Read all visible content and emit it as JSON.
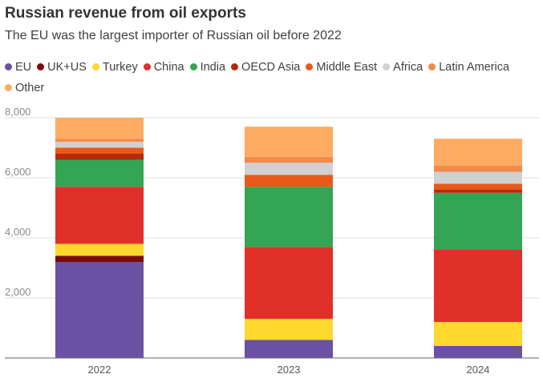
{
  "chart_data": {
    "type": "bar",
    "stacked": true,
    "title": "Russian revenue from oil exports",
    "subtitle": "The EU was the largest importer of Russian oil before 2022",
    "categories": [
      "2022",
      "2023",
      "2024"
    ],
    "y_ticks": [
      2000,
      4000,
      6000,
      8000
    ],
    "y_tick_labels": [
      "2,000",
      "4,000",
      "6,000",
      "8,000"
    ],
    "ylim": [
      0,
      8000
    ],
    "grid": true,
    "legend_position": "top",
    "series": [
      {
        "name": "EU",
        "color": "#6a51a3",
        "values": [
          3200,
          600,
          400
        ]
      },
      {
        "name": "UK+US",
        "color": "#7b0a0a",
        "values": [
          200,
          0,
          0
        ]
      },
      {
        "name": "Turkey",
        "color": "#fed72f",
        "values": [
          400,
          700,
          800
        ]
      },
      {
        "name": "China",
        "color": "#e03029",
        "values": [
          1900,
          2400,
          2400
        ]
      },
      {
        "name": "India",
        "color": "#33a554",
        "values": [
          900,
          2000,
          1900
        ]
      },
      {
        "name": "OECD Asia",
        "color": "#b32c0f",
        "values": [
          200,
          0,
          100
        ]
      },
      {
        "name": "Middle East",
        "color": "#e8591a",
        "values": [
          200,
          400,
          200
        ]
      },
      {
        "name": "Africa",
        "color": "#d0d0d0",
        "values": [
          200,
          400,
          400
        ]
      },
      {
        "name": "Latin America",
        "color": "#f28a4c",
        "values": [
          100,
          200,
          200
        ]
      },
      {
        "name": "Other",
        "color": "#fdab62",
        "values": [
          700,
          1000,
          900
        ]
      }
    ]
  }
}
